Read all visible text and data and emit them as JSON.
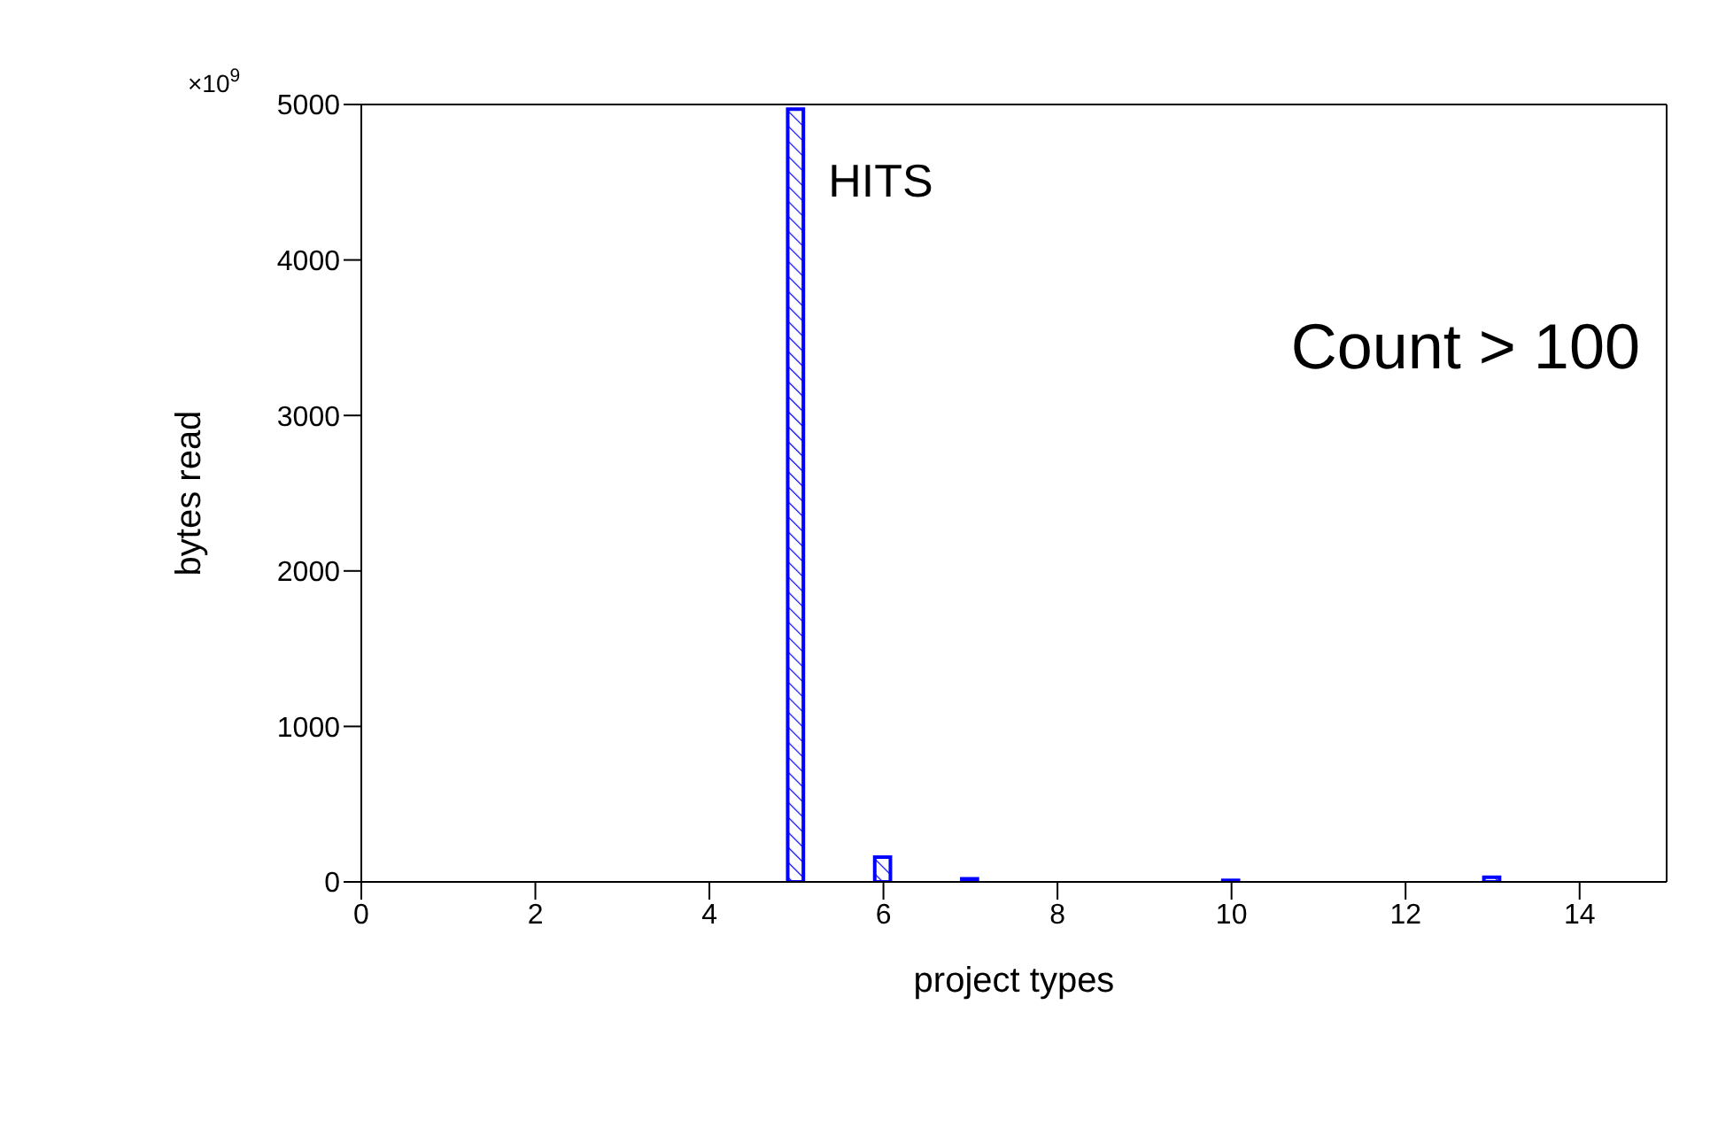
{
  "chart_data": {
    "type": "histogram",
    "xlabel": "project types",
    "ylabel": "bytes read",
    "bins": [
      0.1,
      0.3,
      0.5,
      0.7,
      0.9,
      1.1,
      1.3,
      1.5,
      1.7,
      1.9,
      2.1,
      2.3,
      2.5,
      2.7,
      2.9,
      3.1,
      3.3,
      3.5,
      3.7,
      3.9,
      4.1,
      4.3,
      4.5,
      4.7,
      4.9,
      5.1,
      5.3,
      5.5,
      5.7,
      5.9,
      6.1,
      6.3,
      6.5,
      6.7,
      6.9,
      7.1,
      7.3,
      7.5,
      7.7,
      7.9,
      8.1,
      8.3,
      8.5,
      8.7,
      8.9,
      9.1,
      9.3,
      9.5,
      9.7,
      9.9,
      10.1,
      10.3,
      10.5,
      10.7,
      10.9,
      11.1,
      11.3,
      11.5,
      11.7,
      11.9,
      12.1,
      12.3,
      12.5,
      12.7,
      12.9,
      13.1,
      13.3,
      13.5,
      13.7,
      13.9,
      14.1,
      14.3,
      14.5,
      14.7,
      14.9
    ],
    "values": [
      0,
      0,
      0,
      0,
      0,
      0,
      0,
      0,
      0,
      0,
      0,
      0,
      0,
      0,
      0,
      0,
      0,
      0,
      0,
      0,
      0,
      0,
      0,
      0,
      4970,
      0,
      0,
      0,
      0,
      160,
      0,
      0,
      0,
      0,
      20,
      0,
      0,
      0,
      0,
      0,
      0,
      0,
      0,
      0,
      0,
      0,
      0,
      0,
      0,
      10,
      0,
      0,
      0,
      0,
      0,
      0,
      0,
      0,
      0,
      0,
      0,
      0,
      0,
      0,
      30,
      0,
      0,
      0,
      0,
      0,
      0,
      0,
      0,
      0
    ],
    "color": "#0000ff",
    "xlim": [
      0,
      15
    ],
    "xticks": [
      0,
      2,
      4,
      6,
      8,
      10,
      12,
      14
    ],
    "ylim": [
      0,
      5000
    ],
    "yticks": [
      0,
      1000,
      2000,
      3000,
      4000,
      5000
    ],
    "annotations": [
      "×10$^{9}$",
      {
        "text": "HITS",
        "x": 5,
        "y": 4970
      },
      "Count > 100"
    ]
  }
}
